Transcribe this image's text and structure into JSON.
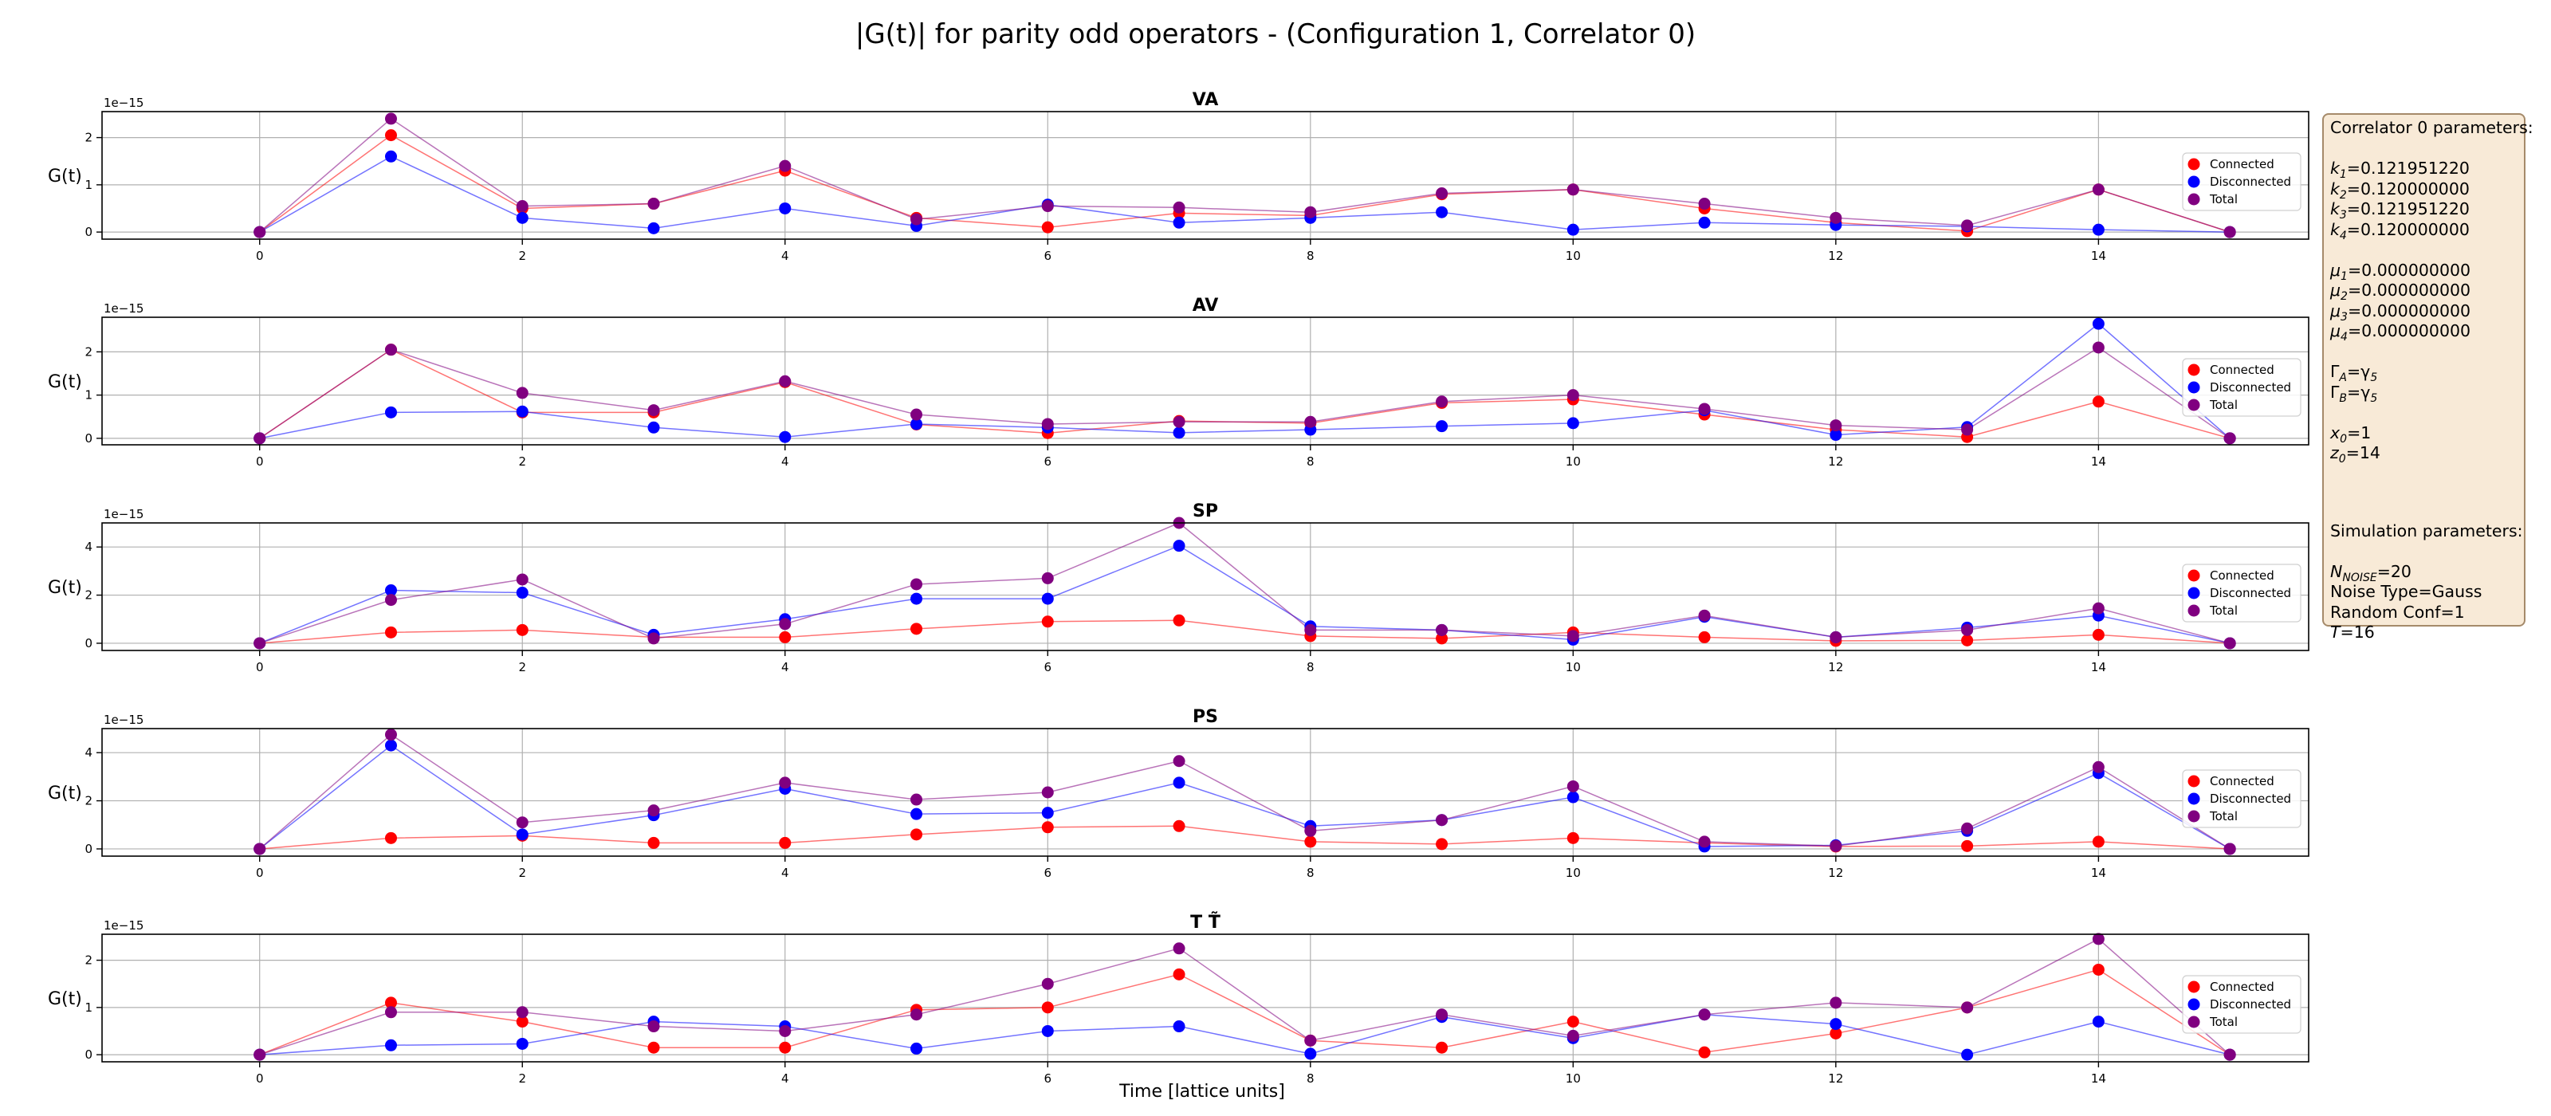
{
  "figure": {
    "title": "|G(t)| for parity odd operators - (Configuration 1, Correlator 0)",
    "xlabel": "Time [lattice units]"
  },
  "colors": {
    "connected": "#ff0000",
    "disconnected": "#0000ff",
    "total": "#800080",
    "grid": "#b0b0b0",
    "info_box_bg": "#f8ead7",
    "info_box_border": "#a58a6a"
  },
  "legend_labels": [
    "Connected",
    "Disconnected",
    "Total"
  ],
  "chart_data": [
    {
      "type": "line",
      "title": "VA",
      "ylabel": "G(t)",
      "offset_text": "1e−15",
      "x": [
        0,
        1,
        2,
        3,
        4,
        5,
        6,
        7,
        8,
        9,
        10,
        11,
        12,
        13,
        14,
        15
      ],
      "xticks": [
        0,
        2,
        4,
        6,
        8,
        10,
        12,
        14
      ],
      "yticks": [
        0,
        1,
        2
      ],
      "ylim": [
        -0.15,
        2.55
      ],
      "grid": true,
      "legend_position": "right",
      "series": [
        {
          "name": "Connected",
          "values": [
            0,
            2.05,
            0.5,
            0.6,
            1.3,
            0.3,
            0.1,
            0.4,
            0.35,
            0.8,
            0.9,
            0.5,
            0.2,
            0.02,
            0.9,
            0
          ]
        },
        {
          "name": "Disconnected",
          "values": [
            0,
            1.6,
            0.3,
            0.08,
            0.5,
            0.13,
            0.58,
            0.2,
            0.3,
            0.42,
            0.05,
            0.2,
            0.15,
            0.12,
            0.05,
            0
          ]
        },
        {
          "name": "Total",
          "values": [
            0,
            2.4,
            0.55,
            0.6,
            1.4,
            0.27,
            0.55,
            0.52,
            0.42,
            0.82,
            0.9,
            0.6,
            0.3,
            0.14,
            0.9,
            0
          ]
        }
      ]
    },
    {
      "type": "line",
      "title": "AV",
      "ylabel": "G(t)",
      "offset_text": "1e−15",
      "x": [
        0,
        1,
        2,
        3,
        4,
        5,
        6,
        7,
        8,
        9,
        10,
        11,
        12,
        13,
        14,
        15
      ],
      "xticks": [
        0,
        2,
        4,
        6,
        8,
        10,
        12,
        14
      ],
      "yticks": [
        0,
        1,
        2
      ],
      "ylim": [
        -0.15,
        2.8
      ],
      "grid": true,
      "legend_position": "right",
      "series": [
        {
          "name": "Connected",
          "values": [
            0,
            2.05,
            0.6,
            0.6,
            1.3,
            0.32,
            0.12,
            0.4,
            0.35,
            0.82,
            0.9,
            0.55,
            0.2,
            0.03,
            0.85,
            0
          ]
        },
        {
          "name": "Disconnected",
          "values": [
            0,
            0.6,
            0.62,
            0.25,
            0.03,
            0.33,
            0.25,
            0.13,
            0.2,
            0.28,
            0.35,
            0.65,
            0.08,
            0.26,
            2.65,
            0
          ]
        },
        {
          "name": "Total",
          "values": [
            0,
            2.05,
            1.05,
            0.65,
            1.32,
            0.55,
            0.33,
            0.38,
            0.38,
            0.85,
            1.0,
            0.68,
            0.3,
            0.2,
            2.1,
            0
          ]
        }
      ]
    },
    {
      "type": "line",
      "title": "SP",
      "ylabel": "G(t)",
      "offset_text": "1e−15",
      "x": [
        0,
        1,
        2,
        3,
        4,
        5,
        6,
        7,
        8,
        9,
        10,
        11,
        12,
        13,
        14,
        15
      ],
      "xticks": [
        0,
        2,
        4,
        6,
        8,
        10,
        12,
        14
      ],
      "yticks": [
        0,
        2,
        4
      ],
      "ylim": [
        -0.3,
        5.0
      ],
      "grid": true,
      "legend_position": "right",
      "series": [
        {
          "name": "Connected",
          "values": [
            0,
            0.45,
            0.55,
            0.25,
            0.25,
            0.6,
            0.9,
            0.95,
            0.3,
            0.2,
            0.45,
            0.25,
            0.1,
            0.12,
            0.35,
            0
          ]
        },
        {
          "name": "Disconnected",
          "values": [
            0,
            2.2,
            2.1,
            0.35,
            1.0,
            1.85,
            1.85,
            4.05,
            0.7,
            0.55,
            0.15,
            1.1,
            0.25,
            0.65,
            1.15,
            0
          ]
        },
        {
          "name": "Total",
          "values": [
            0,
            1.8,
            2.65,
            0.2,
            0.8,
            2.45,
            2.7,
            5.0,
            0.55,
            0.55,
            0.3,
            1.15,
            0.25,
            0.55,
            1.45,
            0
          ]
        }
      ]
    },
    {
      "type": "line",
      "title": "PS",
      "ylabel": "G(t)",
      "offset_text": "1e−15",
      "x": [
        0,
        1,
        2,
        3,
        4,
        5,
        6,
        7,
        8,
        9,
        10,
        11,
        12,
        13,
        14,
        15
      ],
      "xticks": [
        0,
        2,
        4,
        6,
        8,
        10,
        12,
        14
      ],
      "yticks": [
        0,
        2,
        4
      ],
      "ylim": [
        -0.3,
        5.0
      ],
      "grid": true,
      "legend_position": "right",
      "series": [
        {
          "name": "Connected",
          "values": [
            0,
            0.45,
            0.55,
            0.25,
            0.25,
            0.6,
            0.9,
            0.95,
            0.3,
            0.2,
            0.45,
            0.25,
            0.1,
            0.12,
            0.3,
            0
          ]
        },
        {
          "name": "Disconnected",
          "values": [
            0,
            4.3,
            0.6,
            1.4,
            2.5,
            1.45,
            1.5,
            2.75,
            0.95,
            1.2,
            2.15,
            0.1,
            0.15,
            0.75,
            3.15,
            0
          ]
        },
        {
          "name": "Total",
          "values": [
            0,
            4.75,
            1.1,
            1.6,
            2.75,
            2.05,
            2.35,
            3.65,
            0.75,
            1.2,
            2.6,
            0.3,
            0.12,
            0.85,
            3.4,
            0
          ]
        }
      ]
    },
    {
      "type": "line",
      "title": "T T̃",
      "ylabel": "G(t)",
      "offset_text": "1e−15",
      "x": [
        0,
        1,
        2,
        3,
        4,
        5,
        6,
        7,
        8,
        9,
        10,
        11,
        12,
        13,
        14,
        15
      ],
      "xticks": [
        0,
        2,
        4,
        6,
        8,
        10,
        12,
        14
      ],
      "yticks": [
        0,
        1,
        2
      ],
      "ylim": [
        -0.15,
        2.55
      ],
      "grid": true,
      "legend_position": "right",
      "series": [
        {
          "name": "Connected",
          "values": [
            0,
            1.1,
            0.7,
            0.15,
            0.15,
            0.95,
            1.0,
            1.7,
            0.3,
            0.15,
            0.7,
            0.05,
            0.45,
            1.0,
            1.8,
            0
          ]
        },
        {
          "name": "Disconnected",
          "values": [
            0,
            0.2,
            0.23,
            0.7,
            0.6,
            0.13,
            0.5,
            0.6,
            0.02,
            0.8,
            0.35,
            0.85,
            0.65,
            0.0,
            0.7,
            0
          ]
        },
        {
          "name": "Total",
          "values": [
            0,
            0.9,
            0.9,
            0.6,
            0.5,
            0.85,
            1.5,
            2.25,
            0.3,
            0.85,
            0.4,
            0.85,
            1.1,
            1.0,
            2.45,
            0
          ]
        }
      ]
    }
  ],
  "info_box": {
    "corr_heading": "Correlator 0 parameters:",
    "k1": "=0.121951220",
    "k2": "=0.120000000",
    "k3": "=0.121951220",
    "k4": "=0.120000000",
    "mu1": "=0.000000000",
    "mu2": "=0.000000000",
    "mu3": "=0.000000000",
    "mu4": "=0.000000000",
    "gammaA": "=γ",
    "gammaB": "=γ",
    "x0": "=1",
    "z0": "=14",
    "sim_heading": "Simulation parameters:",
    "nnoise": "=20",
    "noise_type": "Noise Type=Gauss",
    "random_conf": "Random Conf=1",
    "T": "=16"
  }
}
